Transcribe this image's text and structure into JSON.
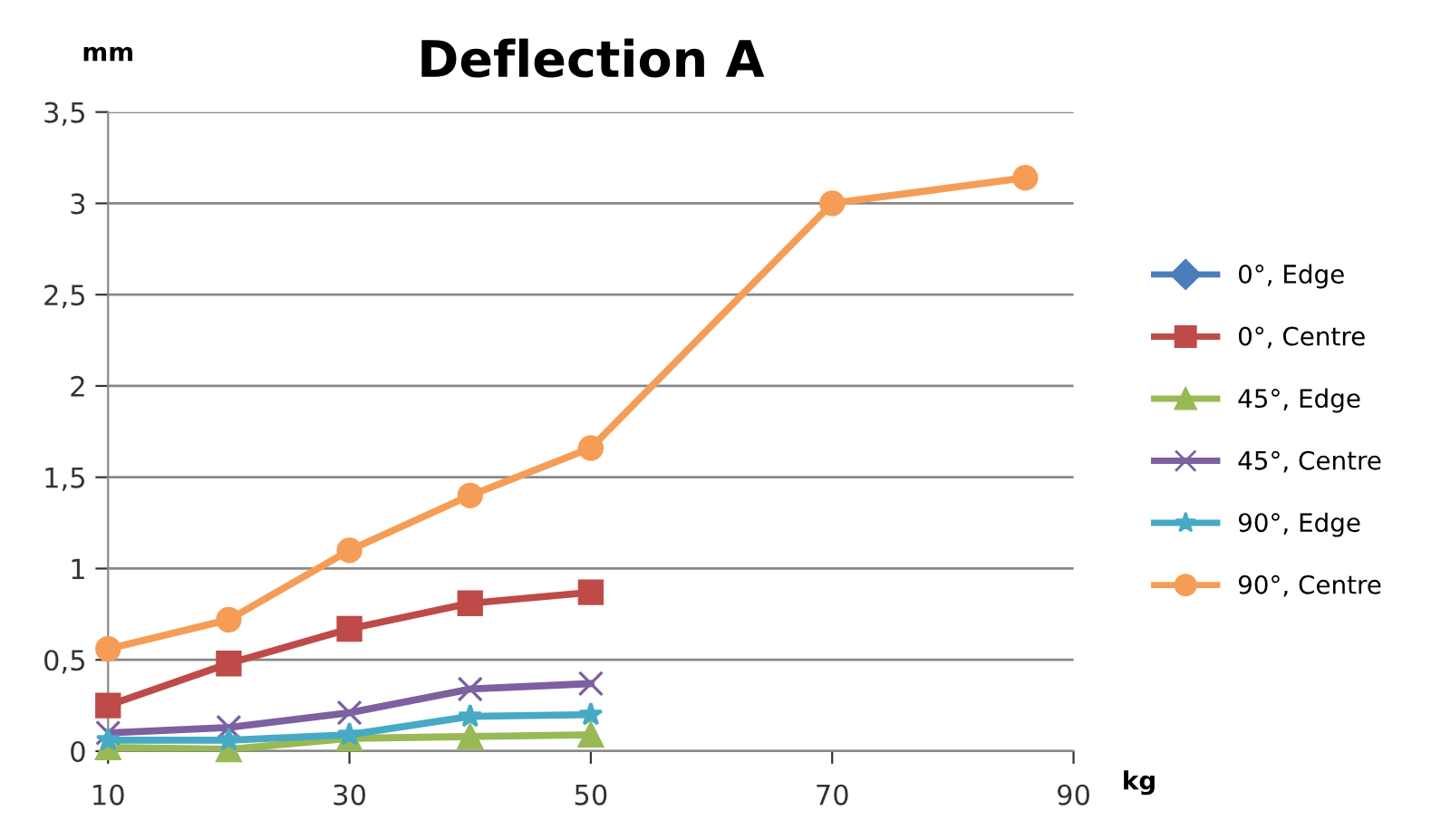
{
  "chart_data": {
    "type": "line",
    "title": "Deflection A",
    "xlabel": "kg",
    "ylabel": "mm",
    "xlim": [
      10,
      90
    ],
    "xticks": [
      10,
      30,
      50,
      70,
      90
    ],
    "ylim": [
      0,
      3.5
    ],
    "yticks": [
      0,
      {
        "value": 0.5,
        "label": "0,5"
      },
      1,
      {
        "value": 1.5,
        "label": "1,5"
      },
      2,
      {
        "value": 2.5,
        "label": "2,5"
      },
      3,
      {
        "value": 3.5,
        "label": "3,5"
      }
    ],
    "grid": "y",
    "legend": "right",
    "series": [
      {
        "name": "0°, Edge",
        "color": "#4a7ebb",
        "marker": "diamond",
        "values": [
          null,
          null,
          null,
          null,
          null
        ]
      },
      {
        "name": "0°, Centre",
        "color": "#be4b48",
        "marker": "square",
        "x": [
          10,
          20,
          30,
          40,
          50
        ],
        "values": [
          0.25,
          0.48,
          0.67,
          0.81,
          0.87
        ]
      },
      {
        "name": "45°, Edge",
        "color": "#98b954",
        "marker": "triangle",
        "x": [
          10,
          20,
          30,
          40,
          50
        ],
        "values": [
          0.02,
          0.01,
          0.07,
          0.08,
          0.09
        ]
      },
      {
        "name": "45°, Centre",
        "color": "#7d60a0",
        "marker": "cross",
        "x": [
          10,
          20,
          30,
          40,
          50
        ],
        "values": [
          0.1,
          0.13,
          0.21,
          0.34,
          0.37
        ]
      },
      {
        "name": "90°, Edge",
        "color": "#46aac5",
        "marker": "star",
        "x": [
          10,
          20,
          30,
          40,
          50
        ],
        "values": [
          0.06,
          0.06,
          0.09,
          0.19,
          0.2
        ]
      },
      {
        "name": "90°, Centre",
        "color": "#f59d56",
        "marker": "circle",
        "x": [
          10,
          20,
          30,
          40,
          50,
          70,
          86
        ],
        "values": [
          0.56,
          0.72,
          1.1,
          1.4,
          1.66,
          3.0,
          3.14
        ]
      }
    ]
  }
}
